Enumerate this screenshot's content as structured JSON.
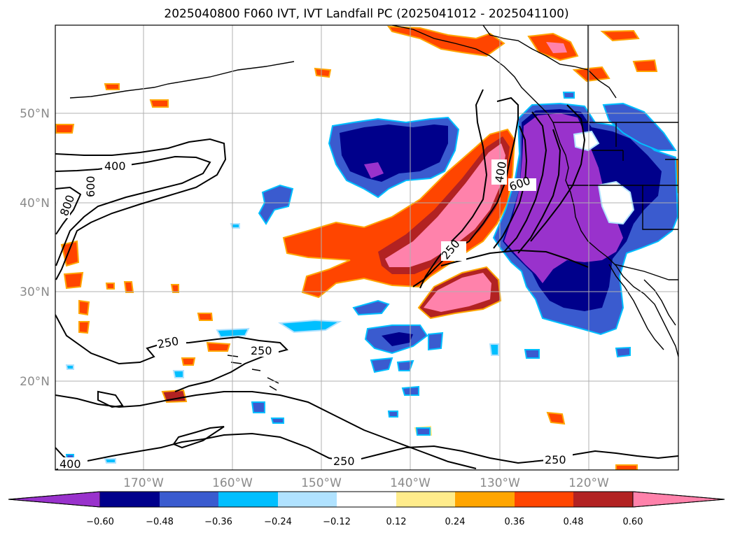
{
  "title": "2025040800 F060 IVT, IVT Landfall PC (2025041012 - 2025041100)",
  "map": {
    "lat_labels": [
      "50°N",
      "40°N",
      "30°N",
      "20°N"
    ],
    "lon_labels": [
      "170°W",
      "160°W",
      "150°W",
      "140°W",
      "130°W",
      "120°W"
    ],
    "grid_color": "#b0b0b0"
  },
  "contour_labels": [
    "400",
    "600",
    "800",
    "400",
    "600",
    "250",
    "250",
    "250",
    "250",
    "400",
    "250"
  ],
  "colorbar": {
    "colors": [
      "#9932cc",
      "#00008b",
      "#3a5bcf",
      "#00bfff",
      "#b0e2ff",
      "#ffffff",
      "#ffec8b",
      "#ffa500",
      "#ff4500",
      "#b22222",
      "#ff82ab"
    ],
    "ticks": [
      "−0.60",
      "−0.48",
      "−0.36",
      "−0.24",
      "−0.12",
      "0.12",
      "0.24",
      "0.36",
      "0.48",
      "0.60"
    ]
  }
}
